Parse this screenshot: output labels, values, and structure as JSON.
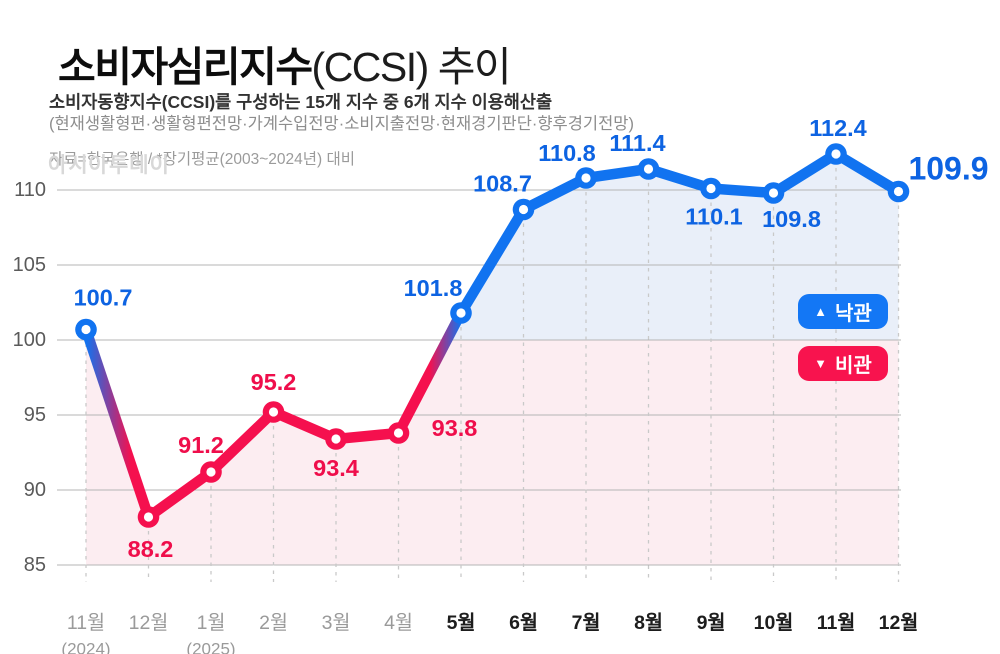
{
  "header": {
    "title_strong": "소비자심리지수",
    "title_rest": "(CCSI) 추이",
    "subtitle": "소비자동향지수(CCSI)를 구성하는 15개 지수 중 6개 지수 이용해산출",
    "subtitle_detail": "(현재생활형편·생활형편전망·가계수입전망·소비지출전망·현재경기판단·향후경기전망)",
    "source": "자료=한국은행 / *장기평균(2003~2024년) 대비",
    "watermark": "아시아투데이"
  },
  "chart_data": {
    "type": "line",
    "title": "소비자심리지수(CCSI) 추이",
    "xlabel": "",
    "ylabel": "",
    "ylim": [
      85,
      110
    ],
    "yticks": [
      85,
      90,
      95,
      100,
      105,
      110
    ],
    "threshold": 100,
    "grid": true,
    "legend_position": "right-middle",
    "months": [
      {
        "label": "11월",
        "sub": "(2024)",
        "strong": false
      },
      {
        "label": "12월",
        "strong": false
      },
      {
        "label": "1월",
        "sub": "(2025)",
        "strong": false
      },
      {
        "label": "2월",
        "strong": false
      },
      {
        "label": "3월",
        "strong": false
      },
      {
        "label": "4월",
        "strong": false
      },
      {
        "label": "5월",
        "strong": true
      },
      {
        "label": "6월",
        "strong": true
      },
      {
        "label": "7월",
        "strong": true
      },
      {
        "label": "8월",
        "strong": true
      },
      {
        "label": "9월",
        "strong": true
      },
      {
        "label": "10월",
        "strong": true
      },
      {
        "label": "11월",
        "strong": true
      },
      {
        "label": "12월",
        "strong": true
      }
    ],
    "values": [
      100.7,
      88.2,
      91.2,
      95.2,
      93.4,
      93.8,
      101.8,
      108.7,
      110.8,
      111.4,
      110.1,
      109.8,
      112.4,
      109.9
    ],
    "legend": {
      "optimism": {
        "symbol": "▲",
        "label": "낙관",
        "color": "#1377f5"
      },
      "pessimism": {
        "symbol": "▼",
        "label": "비관",
        "color": "#f8134e"
      }
    },
    "colors": {
      "line_blue": "#1173f0",
      "line_red": "#f5104e",
      "label_blue": "#0d63e2",
      "label_red": "#ef0e4b",
      "area_above": "#e9eff9",
      "area_below": "#fcedf1",
      "grid": "#b5b5b5",
      "dashed_grid": "#c9c9c9",
      "axis_text": "#5a5a5a",
      "month_strong": "#1d1d1d",
      "month_muted": "#9a9a9a"
    }
  }
}
